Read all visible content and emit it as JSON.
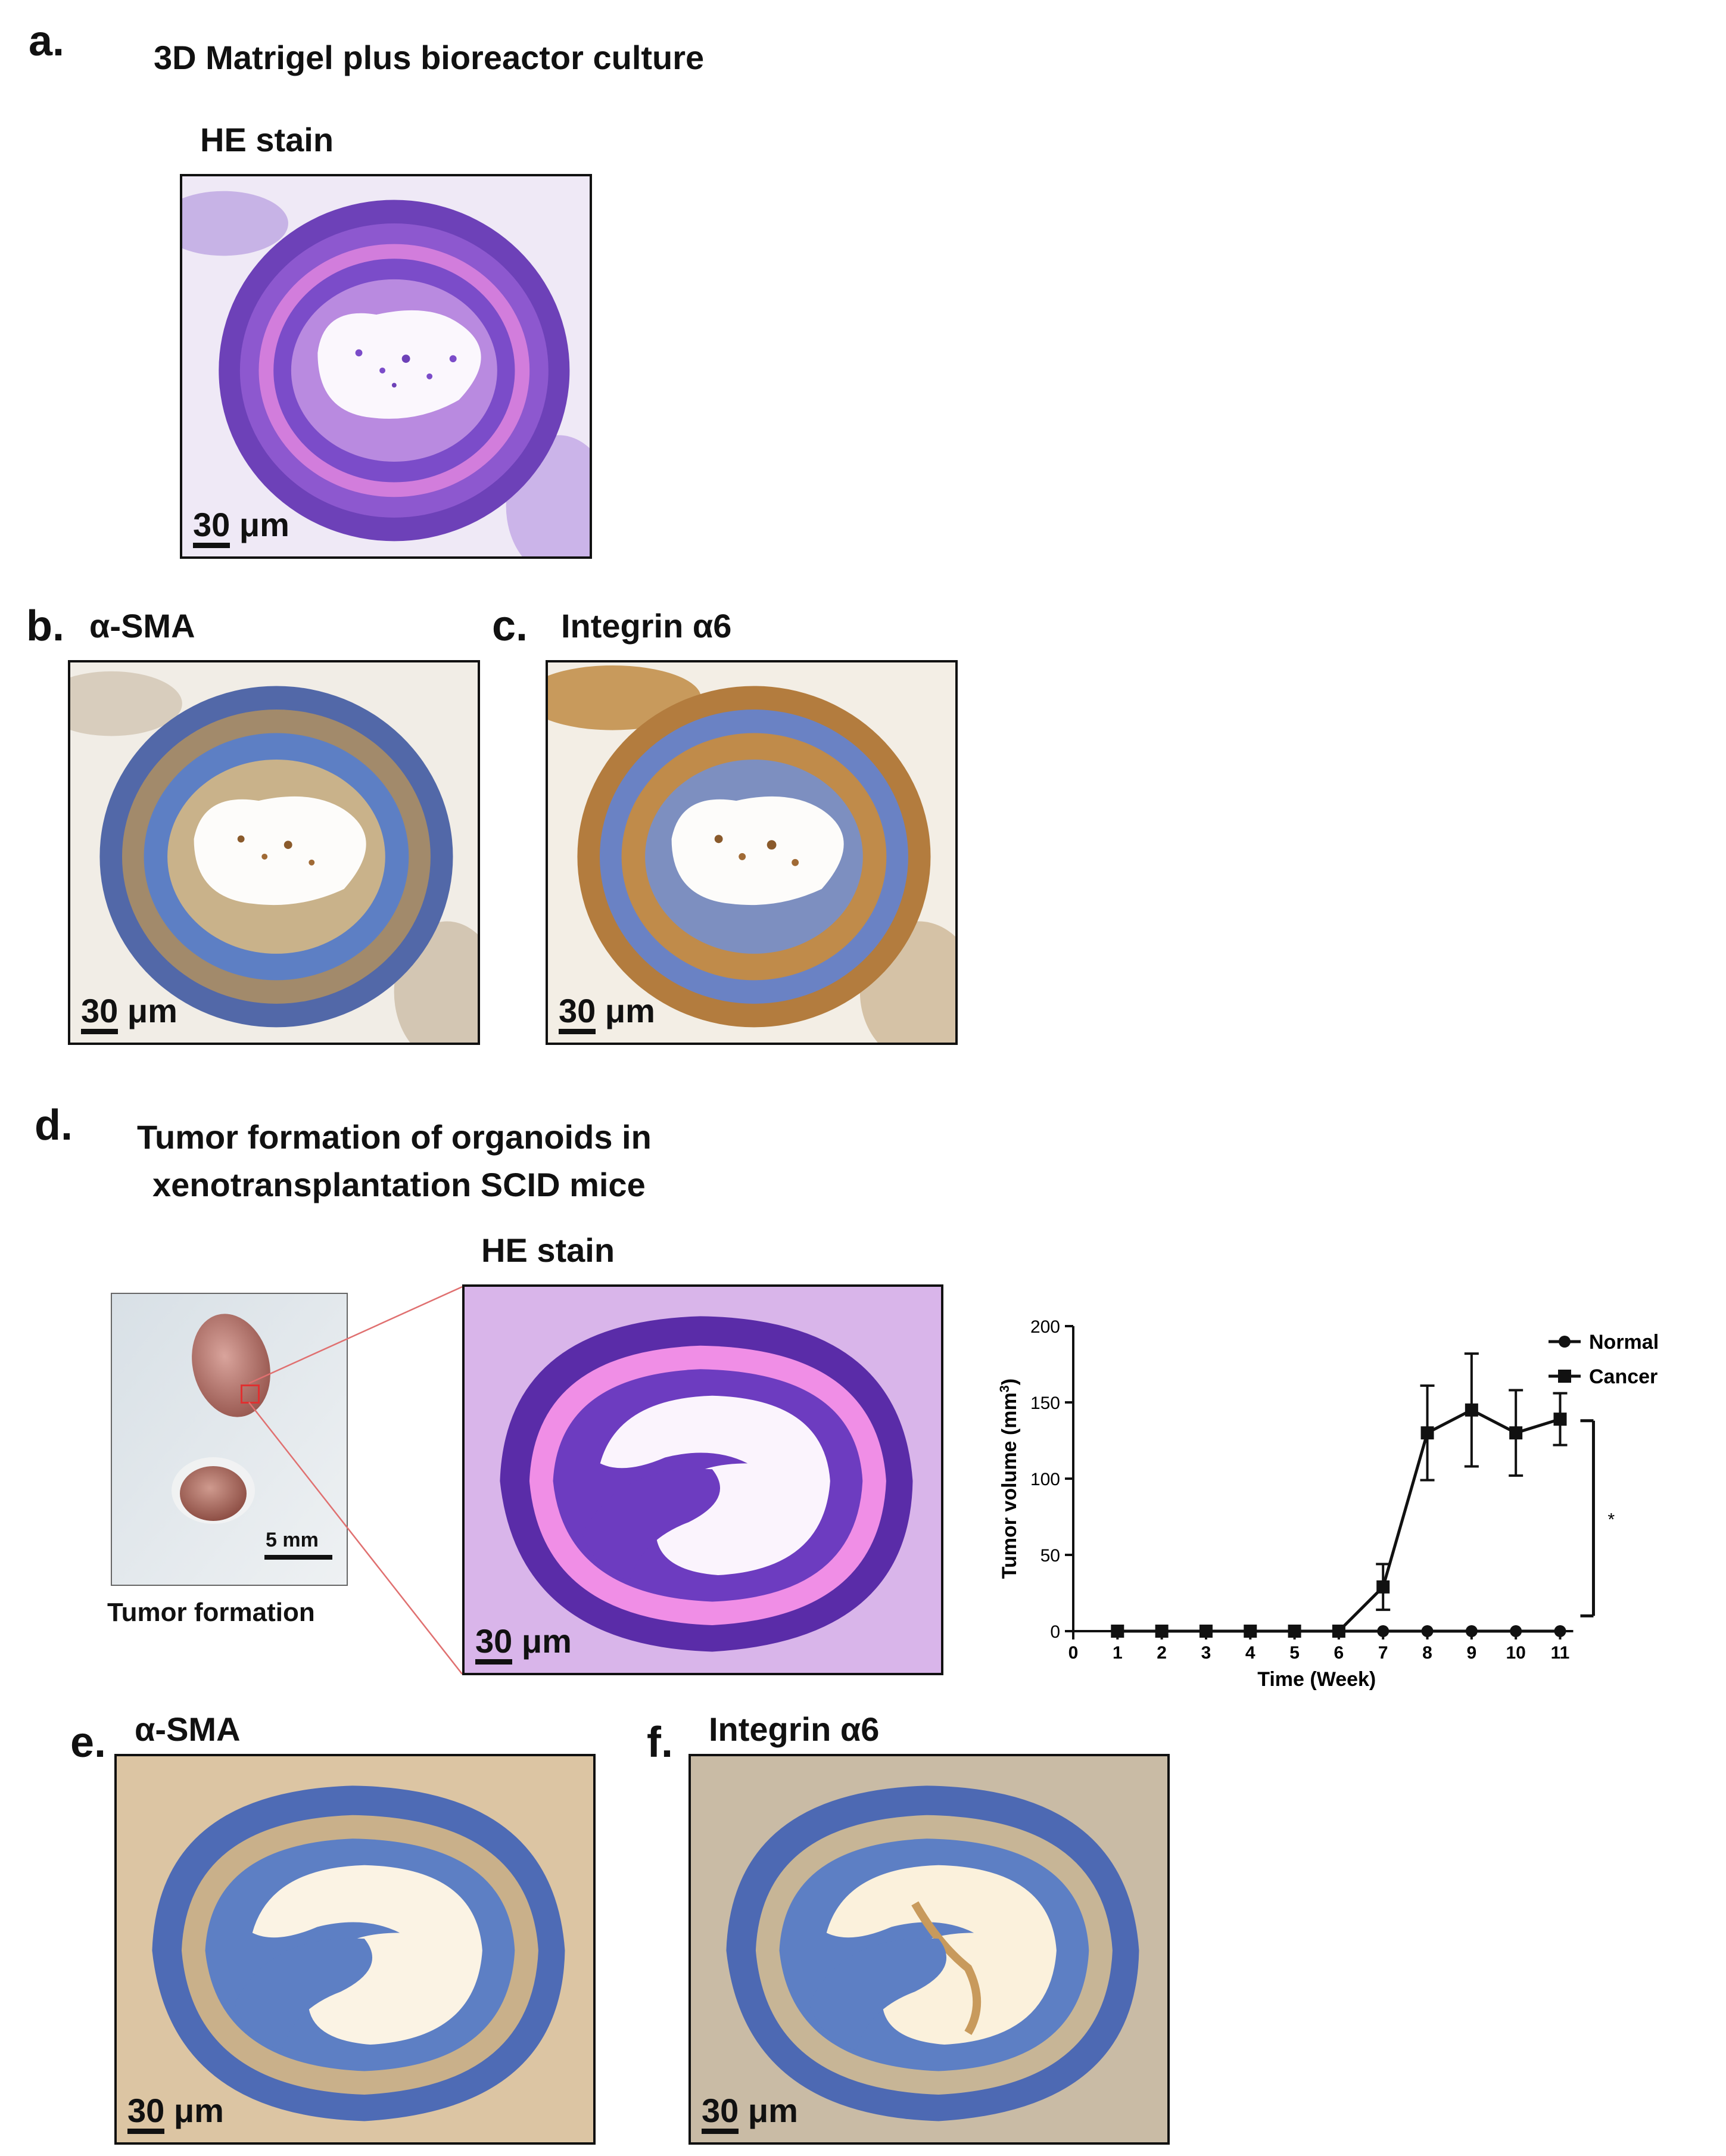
{
  "figure": {
    "panel_a": {
      "letter": "a.",
      "title": "3D Matrigel plus bioreactor culture",
      "subtitle": "HE stain",
      "scale": "30 μm"
    },
    "panel_b": {
      "letter": "b.",
      "title": "α-SMA",
      "scale": "30 μm"
    },
    "panel_c": {
      "letter": "c.",
      "title": "Integrin α6",
      "scale": "30 μm"
    },
    "panel_d": {
      "letter": "d.",
      "title_line1": "Tumor formation of organoids in",
      "title_line2": "xenotransplantation SCID mice",
      "subtitle": "HE stain",
      "photo_scale": "5 mm",
      "photo_caption": "Tumor formation",
      "scale": "30 μm"
    },
    "panel_e": {
      "letter": "e.",
      "title": "α-SMA",
      "scale": "30 μm"
    },
    "panel_f": {
      "letter": "f.",
      "title": "Integrin α6",
      "scale": "30 μm"
    }
  },
  "colors": {
    "he_stain": "#7b4cc9",
    "he_pink": "#f08ee6",
    "ihc_blue": "#5d7fc4",
    "ihc_brown": "#c08b4a",
    "annotation_red": "#e03030"
  },
  "chart_data": {
    "type": "line",
    "xlabel": "Time (Week)",
    "ylabel": "Tumor volume (mm",
    "ylabel_sup": "3",
    "ylabel_end": ")",
    "xlim": [
      0,
      11
    ],
    "ylim": [
      0,
      200
    ],
    "xticks": [
      0,
      1,
      2,
      3,
      4,
      5,
      6,
      7,
      8,
      9,
      10,
      11
    ],
    "yticks": [
      0,
      50,
      100,
      150,
      200
    ],
    "legend_position": "top-right",
    "series": [
      {
        "name": "Normal",
        "marker": "circle",
        "x": [
          1,
          2,
          3,
          4,
          5,
          6,
          7,
          8,
          9,
          10,
          11
        ],
        "y": [
          0,
          0,
          0,
          0,
          0,
          0,
          0,
          0,
          0,
          0,
          0
        ],
        "err": [
          0,
          0,
          0,
          0,
          0,
          0,
          0,
          0,
          0,
          0,
          0
        ]
      },
      {
        "name": "Cancer",
        "marker": "square",
        "x": [
          1,
          2,
          3,
          4,
          5,
          6,
          7,
          8,
          9,
          10,
          11
        ],
        "y": [
          0,
          0,
          0,
          0,
          0,
          0,
          29,
          130,
          145,
          130,
          139
        ],
        "err": [
          0,
          0,
          0,
          0,
          0,
          0,
          15,
          31,
          37,
          28,
          17
        ]
      }
    ],
    "significance": {
      "label": "*",
      "from": 10,
      "to": 138
    }
  }
}
